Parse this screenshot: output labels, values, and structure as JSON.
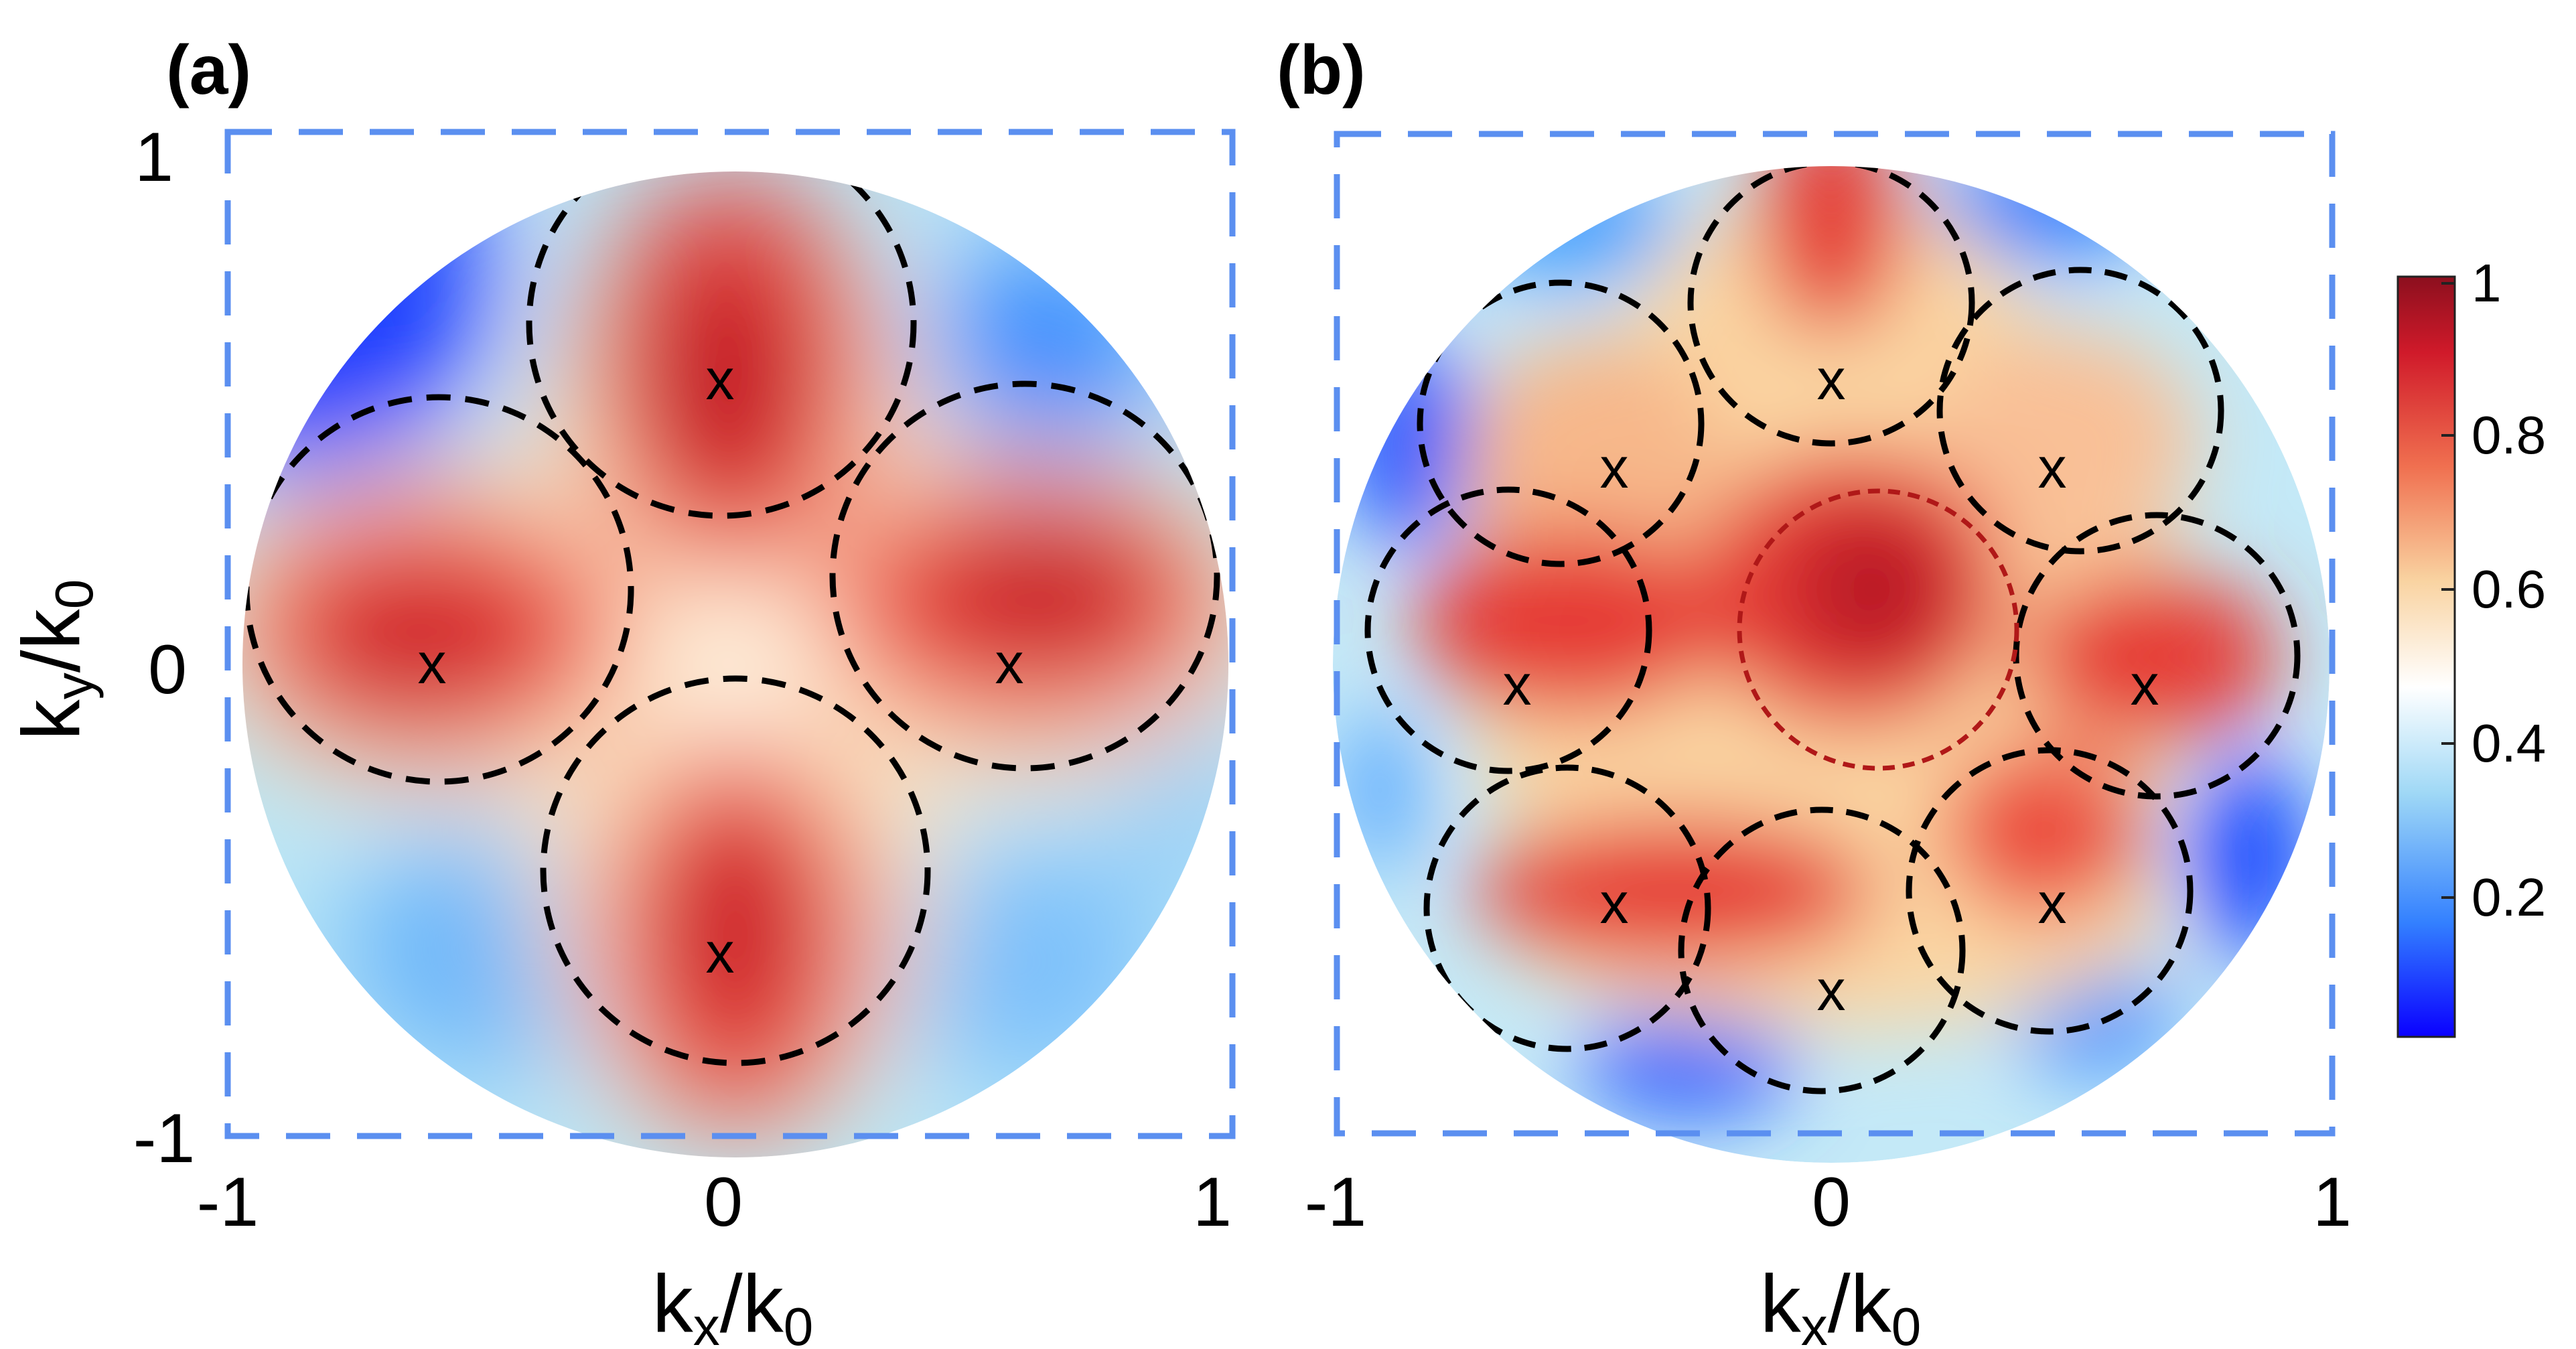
{
  "chart_data": [
    {
      "type": "heatmap",
      "panel_label": "(a)",
      "xlabel": "k_x/k_0",
      "ylabel": "k_y/k_0",
      "xlim": [
        -1,
        1
      ],
      "ylim": [
        -1,
        1
      ],
      "x_ticks": [
        "-1",
        "0",
        "1"
      ],
      "y_ticks": [
        "-1",
        "0",
        "1"
      ],
      "domain": "unit disk (k_x² + k_y² ≤ 1)",
      "value_range": [
        0,
        1
      ],
      "peaks": [
        {
          "x": 0.0,
          "y": 0.6,
          "value": 1.0,
          "label": "x"
        },
        {
          "x": -0.6,
          "y": 0.0,
          "value": 0.9,
          "label": "x"
        },
        {
          "x": 0.6,
          "y": 0.0,
          "value": 0.95,
          "label": "x"
        },
        {
          "x": 0.0,
          "y": -0.6,
          "value": 0.92,
          "label": "x"
        }
      ],
      "circles": [
        {
          "cx": 0.0,
          "cy": 0.57,
          "r": 0.39,
          "style": "black-dashed"
        },
        {
          "cx": -0.54,
          "cy": 0.14,
          "r": 0.39,
          "style": "black-dashed"
        },
        {
          "cx": 0.6,
          "cy": 0.18,
          "r": 0.39,
          "style": "black-dashed"
        },
        {
          "cx": 0.0,
          "cy": -0.39,
          "r": 0.39,
          "style": "black-dashed"
        }
      ],
      "frame": {
        "style": "dashed",
        "color": "#5b8ff0"
      }
    },
    {
      "type": "heatmap",
      "panel_label": "(b)",
      "xlabel": "k_x/k_0",
      "xlim": [
        -1,
        1
      ],
      "ylim": [
        -1,
        1
      ],
      "x_ticks": [
        "-1",
        "0",
        "1"
      ],
      "domain": "unit disk (k_x² + k_y² ≤ 1)",
      "value_range": [
        0,
        1
      ],
      "peaks": [
        {
          "x": 0.0,
          "y": 0.6,
          "value": 0.9,
          "label": "x"
        },
        {
          "x": -0.44,
          "y": 0.42,
          "value": 0.75,
          "label": "x"
        },
        {
          "x": 0.46,
          "y": 0.42,
          "value": 0.7,
          "label": "x"
        },
        {
          "x": -0.63,
          "y": -0.02,
          "value": 0.9,
          "label": "x"
        },
        {
          "x": 0.64,
          "y": 0.0,
          "value": 0.9,
          "label": "x"
        },
        {
          "x": -0.44,
          "y": -0.48,
          "value": 0.88,
          "label": "x"
        },
        {
          "x": 0.46,
          "y": -0.48,
          "value": 0.85,
          "label": "x"
        },
        {
          "x": 0.0,
          "y": -0.64,
          "value": 0.7,
          "label": "x"
        },
        {
          "x": 0.1,
          "y": 0.15,
          "value": 1.0,
          "label": ""
        }
      ],
      "circles": [
        {
          "cx": 0.0,
          "cy": 0.72,
          "r": 0.28,
          "style": "black-dashed"
        },
        {
          "cx": -0.54,
          "cy": 0.46,
          "r": 0.28,
          "style": "black-dashed"
        },
        {
          "cx": 0.54,
          "cy": 0.46,
          "r": 0.28,
          "style": "black-dashed"
        },
        {
          "cx": -0.72,
          "cy": 0.1,
          "r": 0.28,
          "style": "black-dashed"
        },
        {
          "cx": 0.75,
          "cy": 0.05,
          "r": 0.28,
          "style": "black-dashed"
        },
        {
          "cx": -0.54,
          "cy": -0.4,
          "r": 0.28,
          "style": "black-dashed"
        },
        {
          "cx": 0.52,
          "cy": -0.44,
          "r": 0.28,
          "style": "black-dashed"
        },
        {
          "cx": -0.03,
          "cy": -0.5,
          "r": 0.28,
          "style": "black-dashed"
        },
        {
          "cx": 0.1,
          "cy": 0.1,
          "r": 0.28,
          "style": "red-dashed"
        }
      ],
      "frame": {
        "style": "dashed",
        "color": "#5b8ff0"
      }
    }
  ],
  "colorbar": {
    "ticks": [
      "1",
      "0.8",
      "0.6",
      "0.4",
      "0.2"
    ],
    "tick_values": [
      1,
      0.8,
      0.6,
      0.4,
      0.2
    ],
    "range": [
      0.02,
      1
    ],
    "colormap": [
      "#0000ff",
      "#3388ff",
      "#a5dcf5",
      "#ffffff",
      "#fad8a8",
      "#f2604a",
      "#b00f22",
      "#8c0f1e"
    ]
  },
  "colors": {
    "frame": "#5b8ff0",
    "guide_circles": "#000000",
    "central_circle": "#b01818"
  }
}
